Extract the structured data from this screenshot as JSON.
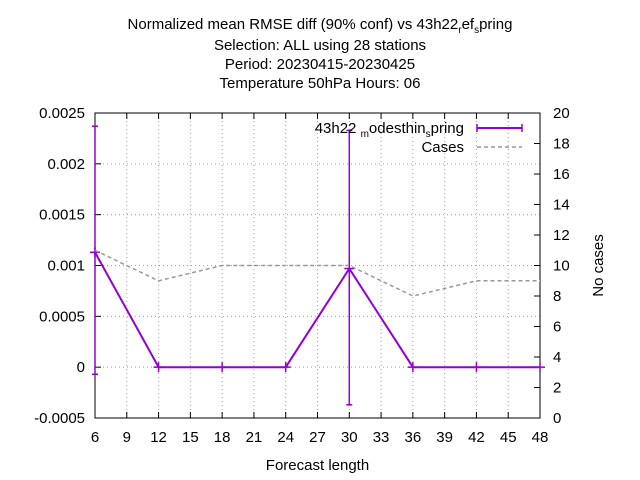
{
  "chart_data": {
    "type": "line",
    "title_lines": [
      "Normalized mean RMSE diff (90% conf) vs 43h22",
      "Selection: ALL using     28 stations",
      "Period: 20230415-20230425",
      "Temperature 50hPa   Hours:  06"
    ],
    "title_suffix": {
      "pre_sub1": "",
      "sub1": "r",
      "mid": "ef",
      "sub2": "s",
      "post": "pring"
    },
    "xlabel": "Forecast length",
    "ylabel_left": "",
    "ylabel_right": "No cases",
    "xlim": [
      6,
      48
    ],
    "ylim": [
      -0.0005,
      0.0025
    ],
    "y2lim": [
      0,
      20
    ],
    "x_ticks": [
      6,
      9,
      12,
      15,
      18,
      21,
      24,
      27,
      30,
      33,
      36,
      39,
      42,
      45,
      48
    ],
    "y_ticks": [
      "-0.0005",
      "0",
      "0.0005",
      "0.001",
      "0.0015",
      "0.002",
      "0.0025"
    ],
    "y_tick_values": [
      -0.0005,
      0,
      0.0005,
      0.001,
      0.0015,
      0.002,
      0.0025
    ],
    "y2_ticks": [
      0,
      2,
      4,
      6,
      8,
      10,
      12,
      14,
      16,
      18,
      20
    ],
    "grid": true,
    "legend_position": "top-right",
    "series": [
      {
        "name": "43h22_modesthin_spring",
        "legend_parts": [
          "43h22",
          "m",
          "odesthin",
          "s",
          "pring"
        ],
        "color": "#9400d3",
        "axis": "left",
        "style": "solid-errorbars",
        "x": [
          6,
          12,
          18,
          24,
          30,
          36,
          42,
          48
        ],
        "y": [
          0.00113,
          0,
          0,
          0,
          0.00097,
          0,
          0,
          0
        ],
        "err_low": [
          -7e-05,
          null,
          null,
          null,
          -0.00037,
          null,
          null,
          null
        ],
        "err_high": [
          0.00237,
          null,
          null,
          null,
          0.00233,
          null,
          null,
          null
        ]
      },
      {
        "name": "Cases",
        "color": "#999999",
        "axis": "right",
        "style": "dashed",
        "x": [
          6,
          12,
          18,
          24,
          30,
          36,
          42,
          48
        ],
        "y": [
          11,
          9,
          10,
          10,
          10,
          8,
          9,
          9
        ]
      }
    ]
  }
}
